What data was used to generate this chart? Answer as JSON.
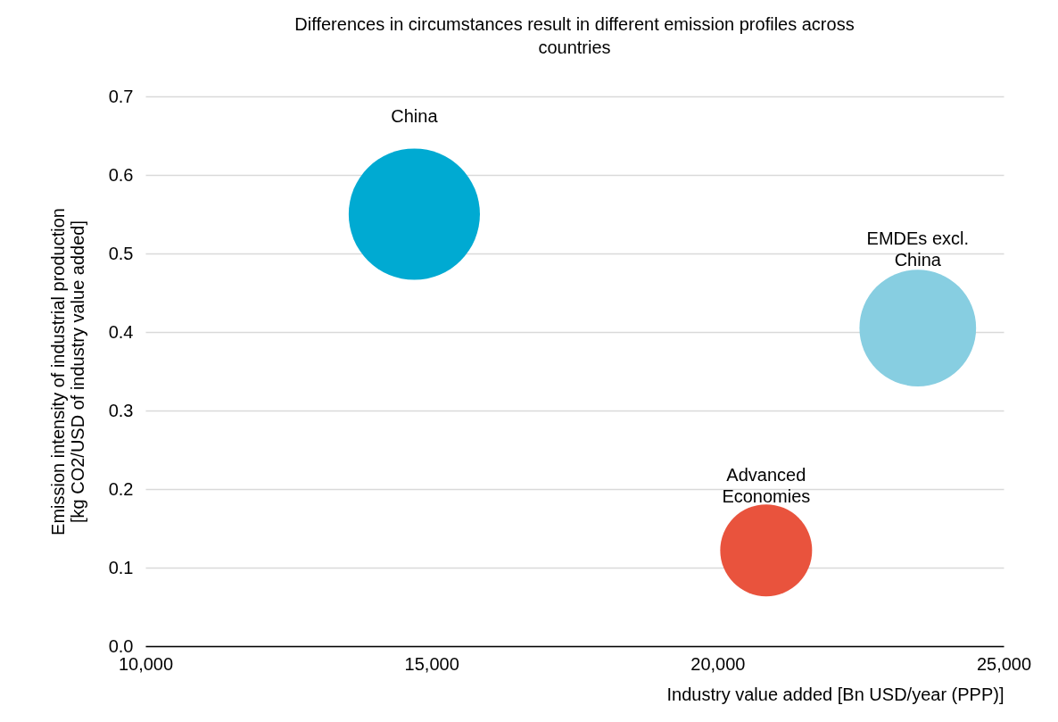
{
  "chart_data": {
    "type": "bubble",
    "title": "Differences in circumstances result in different emission profiles across countries",
    "xlabel": "Industry value added [Bn USD/year (PPP)]",
    "ylabel": "Emission intensity of industrial production [kg CO2/USD of industry value added]",
    "series": [
      {
        "name": "China",
        "color": "#00aad2",
        "x": [
          14700
        ],
        "values": [
          0.55
        ],
        "sizes": [
          1
        ]
      },
      {
        "name": "EMDEs excl. China",
        "color": "#87cee1",
        "x": [
          23500
        ],
        "values": [
          0.405
        ],
        "sizes": [
          0.79
        ]
      },
      {
        "name": "Advanced Economies",
        "color": "#e9533d",
        "x": [
          20850
        ],
        "values": [
          0.122
        ],
        "sizes": [
          0.49
        ]
      }
    ],
    "xlim": [
      10000,
      25000
    ],
    "xticks": [
      {
        "value": 10000,
        "label": "10,000"
      },
      {
        "value": 15000,
        "label": "15,000"
      },
      {
        "value": 20000,
        "label": "20,000"
      },
      {
        "value": 25000,
        "label": "25,000"
      }
    ],
    "ylim": [
      0,
      0.7
    ],
    "yticks": [
      {
        "value": 0,
        "label": "0.0"
      },
      {
        "value": 0.1,
        "label": "0.1"
      },
      {
        "value": 0.2,
        "label": "0.2"
      },
      {
        "value": 0.3,
        "label": "0.3"
      },
      {
        "value": 0.4,
        "label": "0.4"
      },
      {
        "value": 0.5,
        "label": "0.5"
      },
      {
        "value": 0.6,
        "label": "0.6"
      },
      {
        "value": 0.7,
        "label": "0.7"
      }
    ],
    "grid": "y",
    "legend": false
  }
}
